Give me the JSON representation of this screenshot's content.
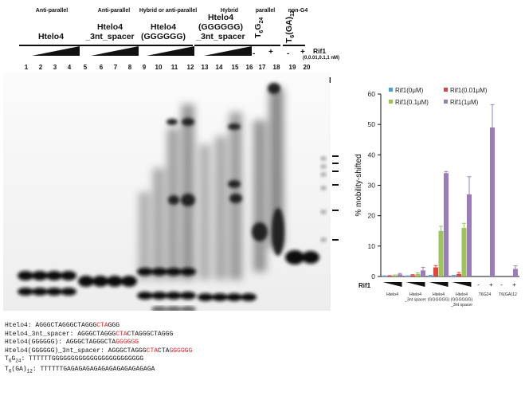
{
  "conditions": [
    "Anti-parallel",
    "Anti-parallel",
    "Hybrid or anti-parallel",
    "Hybrid",
    "parallel",
    "non-G4"
  ],
  "groups": [
    {
      "line1": "",
      "line2": "Htelo4"
    },
    {
      "line1": "Htelo4",
      "line2": "_3nt_spacer"
    },
    {
      "line1": "Htelo4",
      "line2": "(GGGGGG)"
    },
    {
      "line1": "Htelo4",
      "line2": "(GGGGGG)",
      "line3": "_3nt_spacer"
    }
  ],
  "tg24_label": {
    "main": "T",
    "sub1": "6",
    "mid": "G",
    "sub2": "24"
  },
  "tga_label": {
    "main": "T",
    "sub1": "6",
    "mid": "(GA)",
    "sub2": "12"
  },
  "rif1_label": "Rif1",
  "rif1_conc": "(0,0.01,0.1,1 nM)",
  "minus": "-",
  "plus": "+",
  "marker": "M",
  "lanes": [
    "1",
    "2",
    "3",
    "4",
    "5",
    "6",
    "7",
    "8",
    "9",
    "10",
    "11",
    "12",
    "13",
    "14",
    "15",
    "16",
    "17",
    "18",
    "19",
    "20"
  ],
  "sequences": [
    {
      "name": "Htelo4: ",
      "parts": [
        {
          "t": "AGGGCTAGGGCTAGGG",
          "c": ""
        },
        {
          "t": "CTA",
          "c": "red"
        },
        {
          "t": "GGG",
          "c": ""
        }
      ]
    },
    {
      "name": "Htelo4_3nt_spacer: ",
      "parts": [
        {
          "t": "AGGGCTAGGG",
          "c": ""
        },
        {
          "t": "CTA",
          "c": "red"
        },
        {
          "t": "CTAGGGCTAGGG",
          "c": ""
        }
      ]
    },
    {
      "name": "Htelo4(GGGGGG): ",
      "parts": [
        {
          "t": "AGGGCTAGGGCTA",
          "c": ""
        },
        {
          "t": "GGGGGG",
          "c": "red"
        }
      ]
    },
    {
      "name": "Htelo4(GGGGGG)_3nt_spacer: ",
      "parts": [
        {
          "t": "AGGGCTAGGG",
          "c": ""
        },
        {
          "t": "CTA",
          "c": "red"
        },
        {
          "t": "CTA",
          "c": ""
        },
        {
          "t": "GGGGGG",
          "c": "red"
        }
      ]
    },
    {
      "name": "T6G24: ",
      "parts": [
        {
          "t": "TTTTTTGGGGGGGGGGGGGGGGGGGGGGGG",
          "c": ""
        }
      ]
    },
    {
      "name": "T6(GA)12: ",
      "parts": [
        {
          "t": "TTTTTTGAGAGAGAGAGAGAGAGAGAGAGA",
          "c": ""
        }
      ]
    }
  ],
  "chart_data": {
    "type": "bar",
    "ylabel": "% mobility-shifted",
    "xlabel": "Rif1",
    "ylim": [
      0,
      60
    ],
    "yticks": [
      0,
      10,
      20,
      30,
      40,
      50,
      60
    ],
    "categories": [
      "Htelo4",
      "Htelo4\n_3nt spacer",
      "Htelo4\n(GGGGGG)",
      "Htelo4\n(GGGGGG)\n_3nt spacer",
      "T6G24",
      "T6(GA)12"
    ],
    "series": [
      {
        "name": "Rif1(0μM)",
        "color": "#4f9fd6",
        "values": [
          0.1,
          0.1,
          0.2,
          0.2,
          null,
          null
        ],
        "errors": [
          0.1,
          0.1,
          0.2,
          0.2,
          null,
          null
        ]
      },
      {
        "name": "Rif1(0.01μM)",
        "color": "#e0463c",
        "values": [
          0.2,
          0.4,
          3.0,
          0.8,
          null,
          null
        ],
        "errors": [
          0.1,
          0.2,
          0.6,
          0.5,
          null,
          null
        ]
      },
      {
        "name": "Rif1(0.1μM)",
        "color": "#9cc45a",
        "values": [
          0.3,
          0.8,
          15.0,
          16.0,
          null,
          null
        ],
        "errors": [
          0.2,
          0.4,
          1.5,
          1.5,
          null,
          null
        ]
      },
      {
        "name": "Rif1(1μM)",
        "color": "#9a7cbd",
        "values": [
          0.7,
          2.0,
          34.0,
          27.0,
          49.0,
          2.5
        ],
        "errors": [
          0.3,
          1.0,
          0.5,
          5.8,
          7.5,
          1.0
        ]
      }
    ],
    "legend": "top",
    "grid": false
  }
}
